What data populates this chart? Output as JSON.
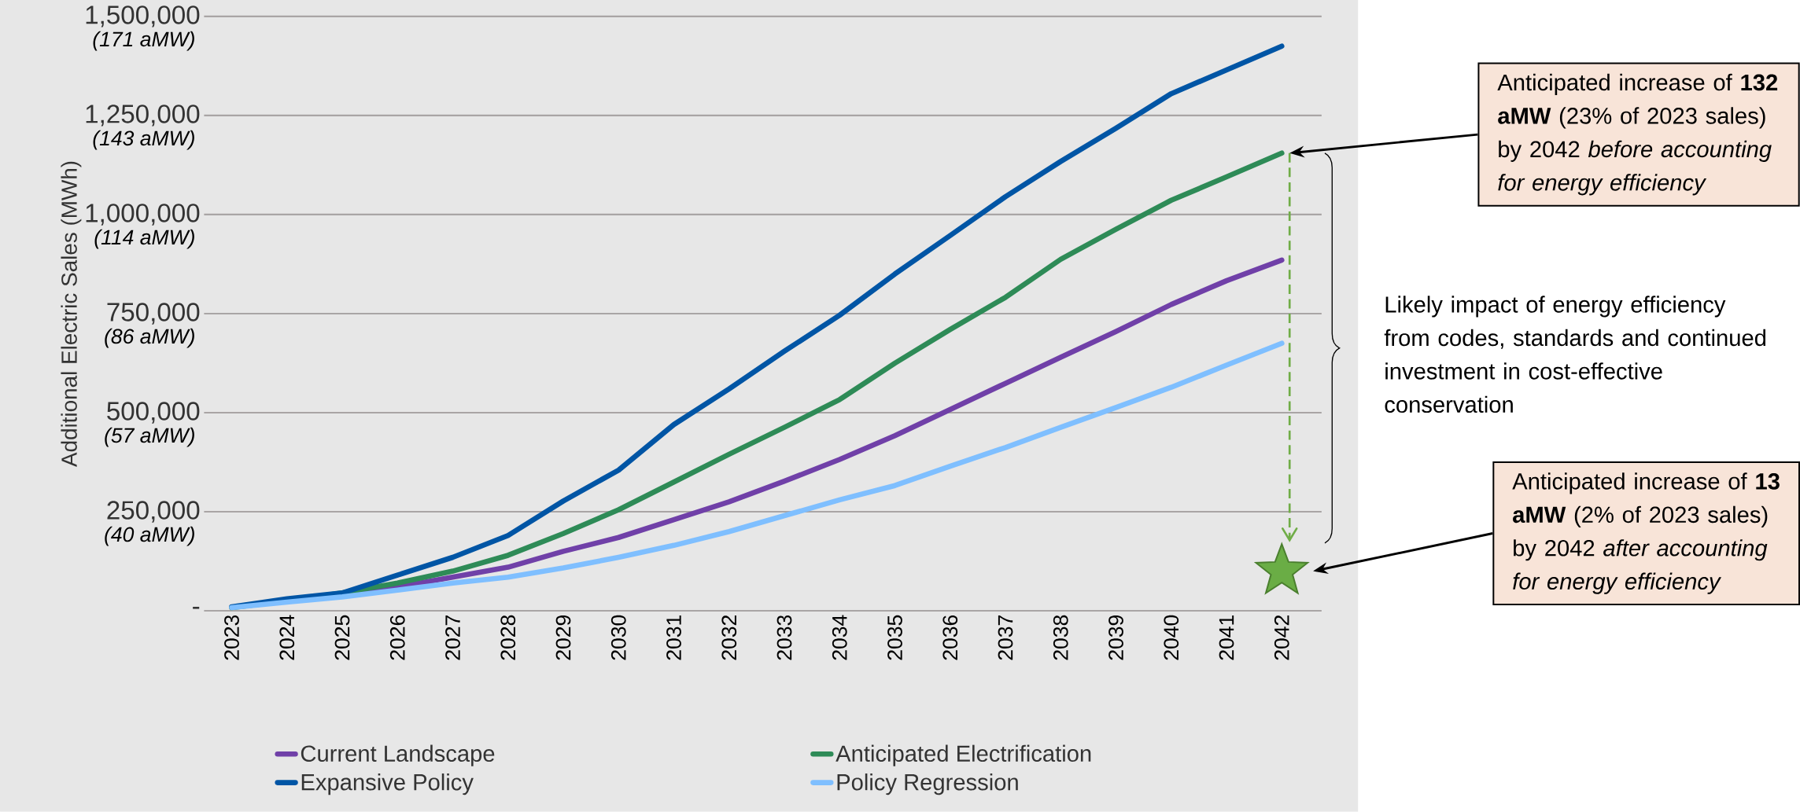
{
  "chart_data": {
    "type": "line",
    "ylabel": "Additional Electric Sales (MWh)",
    "categories": [
      "2023",
      "2024",
      "2025",
      "2026",
      "2027",
      "2028",
      "2029",
      "2030",
      "2031",
      "2032",
      "2033",
      "2034",
      "2035",
      "2036",
      "2037",
      "2038",
      "2039",
      "2040",
      "2041",
      "2042"
    ],
    "series": [
      {
        "name": "Current Landscape",
        "color": "#7040a8",
        "values": [
          null,
          null,
          40000,
          60000,
          85000,
          110000,
          150000,
          185000,
          230000,
          275000,
          327000,
          382000,
          442000,
          508000,
          574000,
          640000,
          705000,
          773000,
          833000,
          885000
        ]
      },
      {
        "name": "Anticipated Electrification",
        "color": "#2e8b57",
        "values": [
          8000,
          25000,
          45000,
          70000,
          100000,
          140000,
          195000,
          255000,
          325000,
          395000,
          463000,
          533000,
          625000,
          710000,
          791000,
          887000,
          963000,
          1036000,
          1095000,
          1155000
        ]
      },
      {
        "name": "Expansive Policy",
        "color": "#0055a5",
        "values": [
          10000,
          30000,
          45000,
          90000,
          135000,
          190000,
          277000,
          355000,
          470000,
          560000,
          655000,
          746000,
          850000,
          947000,
          1045000,
          1134000,
          1218000,
          1305000,
          1365000,
          1425000
        ]
      },
      {
        "name": "Policy Regression",
        "color": "#7fbfff",
        "values": [
          8000,
          22000,
          35000,
          52000,
          70000,
          85000,
          108000,
          135000,
          165000,
          200000,
          240000,
          280000,
          316000,
          365000,
          412000,
          463000,
          513000,
          564000,
          620000,
          675000
        ]
      },
      {
        "type": "scatter",
        "marker": "star",
        "color": "#6aad45",
        "values": [
          null,
          null,
          null,
          null,
          null,
          null,
          null,
          null,
          null,
          null,
          null,
          null,
          null,
          null,
          null,
          null,
          null,
          null,
          null,
          100000
        ],
        "errors": [
          null,
          null,
          null,
          null,
          null,
          null,
          null,
          null,
          null,
          null,
          null,
          null,
          null,
          null,
          null,
          null,
          null,
          null,
          null,
          [
            178000,
            1155000
          ]
        ]
      }
    ],
    "ylim": [
      0,
      1500000
    ],
    "yticks": [
      {
        "value": 0,
        "label": "-"
      },
      {
        "value": 250000,
        "label": "250,000"
      },
      {
        "value": 500000,
        "label": "500,000"
      },
      {
        "value": 750000,
        "label": "750,000"
      },
      {
        "value": 1000000,
        "label": "1,000,000"
      },
      {
        "value": 1250000,
        "label": "1,250,000"
      },
      {
        "value": 1500000,
        "label": "1,500,000"
      }
    ],
    "grid": "y",
    "legend": "bottom",
    "annotations": [
      "(40 aMW)",
      "(57 aMW)",
      "(86 aMW)",
      "(114 aMW)",
      "(143 aMW)",
      "(171 aMW)",
      "Anticipated increase of **132 aMW** (23% of 2023 sales) by 2042 *before accounting for energy efficiency*",
      "Likely impact of energy efficiency from codes, standards and continued investment in cost-effective conservation",
      "Anticipated increase of **13 aMW** (2% of 2023 sales) by 2042 *after accounting for energy efficiency*"
    ]
  }
}
